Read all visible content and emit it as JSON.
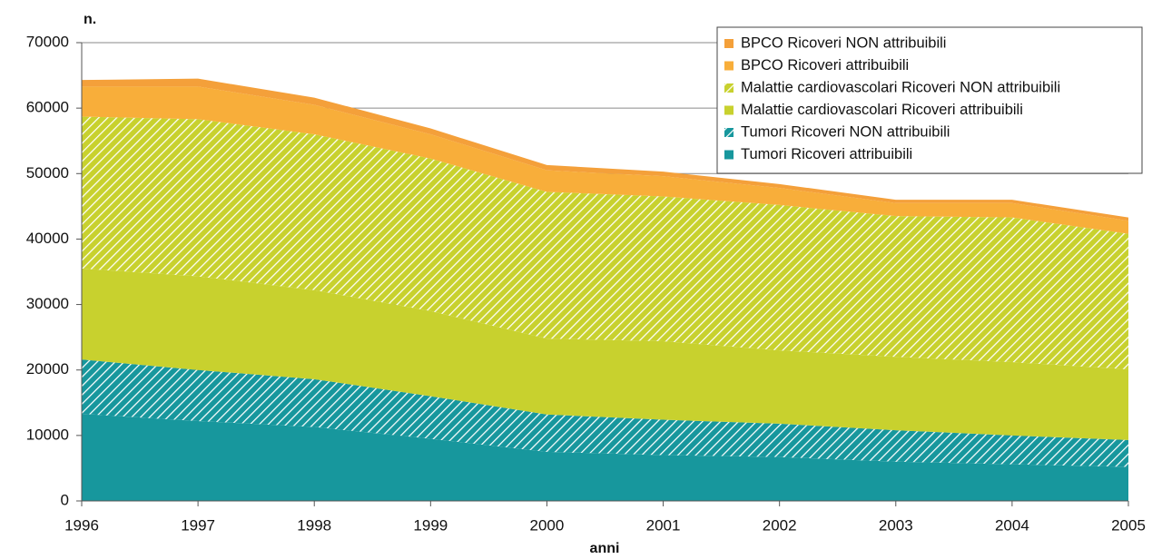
{
  "chart_data": {
    "type": "stacked-area",
    "y_label": "n.",
    "x_label": "anni",
    "x": [
      1996,
      1997,
      1998,
      1999,
      2000,
      2001,
      2002,
      2003,
      2004,
      2005
    ],
    "xlim": [
      1996,
      2005
    ],
    "xticks": [
      1996,
      1997,
      1998,
      1999,
      2000,
      2001,
      2002,
      2003,
      2004,
      2005
    ],
    "ylim": [
      0,
      70000
    ],
    "yticks": [
      0,
      10000,
      20000,
      30000,
      40000,
      50000,
      60000,
      70000
    ],
    "grid": true,
    "legend": "top-right",
    "series": [
      {
        "name": "Tumori Ricoveri attribuibili",
        "color": "#17979d",
        "hatched": false,
        "values": [
          13300,
          12200,
          11300,
          9500,
          7500,
          7000,
          6700,
          6000,
          5600,
          5200
        ]
      },
      {
        "name": "Tumori Ricoveri NON attribuibili",
        "color": "#17979d",
        "hatched": true,
        "values": [
          8300,
          7800,
          7300,
          6500,
          5700,
          5400,
          5100,
          4800,
          4400,
          4100
        ]
      },
      {
        "name": "Malattie cardiovascolari Ricoveri attribuibili",
        "color": "#c8d12e",
        "hatched": false,
        "values": [
          13900,
          14300,
          13600,
          13000,
          11600,
          12000,
          11200,
          11200,
          11200,
          10800
        ]
      },
      {
        "name": "Malattie cardiovascolari Ricoveri NON attribuibili",
        "color": "#c8d12e",
        "hatched": true,
        "values": [
          23200,
          24000,
          23800,
          23300,
          22400,
          22100,
          22200,
          21500,
          22100,
          20700
        ]
      },
      {
        "name": "BPCO Ricoveri attribuibili",
        "color": "#f8ae3a",
        "hatched": false,
        "values": [
          4600,
          5000,
          4500,
          3700,
          3300,
          3100,
          2600,
          2000,
          2200,
          2000
        ]
      },
      {
        "name": "BPCO Ricoveri NON attribuibili",
        "color": "#f4a03a",
        "hatched": false,
        "values": [
          1000,
          1200,
          1100,
          900,
          800,
          700,
          600,
          500,
          500,
          500
        ]
      }
    ]
  }
}
